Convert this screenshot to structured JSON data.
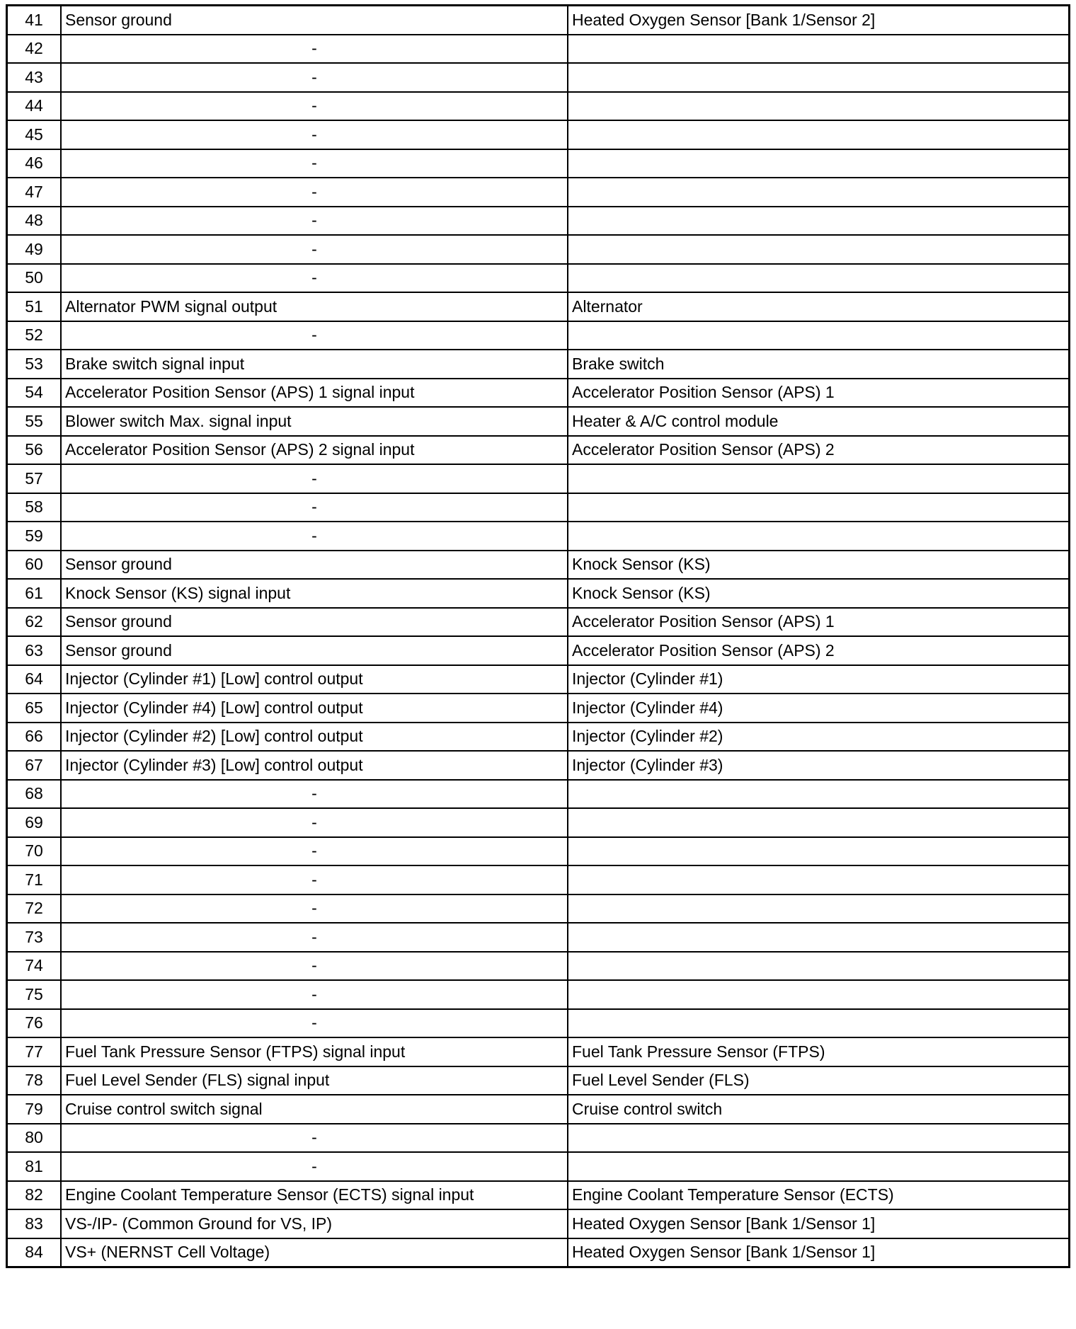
{
  "rows": [
    {
      "pin": "41",
      "description": "Sensor ground",
      "connected_to": "Heated Oxygen Sensor [Bank 1/Sensor 2]"
    },
    {
      "pin": "42",
      "description": "-",
      "connected_to": ""
    },
    {
      "pin": "43",
      "description": "-",
      "connected_to": ""
    },
    {
      "pin": "44",
      "description": "-",
      "connected_to": ""
    },
    {
      "pin": "45",
      "description": "-",
      "connected_to": ""
    },
    {
      "pin": "46",
      "description": "-",
      "connected_to": ""
    },
    {
      "pin": "47",
      "description": "-",
      "connected_to": ""
    },
    {
      "pin": "48",
      "description": "-",
      "connected_to": ""
    },
    {
      "pin": "49",
      "description": "-",
      "connected_to": ""
    },
    {
      "pin": "50",
      "description": "-",
      "connected_to": ""
    },
    {
      "pin": "51",
      "description": "Alternator PWM signal output",
      "connected_to": "Alternator"
    },
    {
      "pin": "52",
      "description": "-",
      "connected_to": ""
    },
    {
      "pin": "53",
      "description": "Brake switch signal input",
      "connected_to": "Brake switch"
    },
    {
      "pin": "54",
      "description": "Accelerator Position Sensor (APS) 1 signal input",
      "connected_to": "Accelerator Position Sensor (APS) 1"
    },
    {
      "pin": "55",
      "description": "Blower switch Max. signal input",
      "connected_to": "Heater & A/C control module"
    },
    {
      "pin": "56",
      "description": "Accelerator Position Sensor (APS) 2 signal input",
      "connected_to": "Accelerator Position Sensor (APS) 2"
    },
    {
      "pin": "57",
      "description": "-",
      "connected_to": ""
    },
    {
      "pin": "58",
      "description": "-",
      "connected_to": ""
    },
    {
      "pin": "59",
      "description": "-",
      "connected_to": ""
    },
    {
      "pin": "60",
      "description": "Sensor ground",
      "connected_to": "Knock Sensor (KS)"
    },
    {
      "pin": "61",
      "description": "Knock Sensor (KS) signal input",
      "connected_to": "Knock Sensor (KS)"
    },
    {
      "pin": "62",
      "description": "Sensor ground",
      "connected_to": "Accelerator Position Sensor (APS) 1"
    },
    {
      "pin": "63",
      "description": "Sensor ground",
      "connected_to": "Accelerator Position Sensor (APS) 2"
    },
    {
      "pin": "64",
      "description": "Injector (Cylinder #1) [Low] control output",
      "connected_to": "Injector (Cylinder #1)"
    },
    {
      "pin": "65",
      "description": "Injector (Cylinder #4) [Low] control output",
      "connected_to": "Injector (Cylinder #4)"
    },
    {
      "pin": "66",
      "description": "Injector (Cylinder #2) [Low] control output",
      "connected_to": "Injector (Cylinder #2)"
    },
    {
      "pin": "67",
      "description": "Injector (Cylinder #3) [Low] control output",
      "connected_to": "Injector (Cylinder #3)"
    },
    {
      "pin": "68",
      "description": "-",
      "connected_to": ""
    },
    {
      "pin": "69",
      "description": "-",
      "connected_to": ""
    },
    {
      "pin": "70",
      "description": "-",
      "connected_to": ""
    },
    {
      "pin": "71",
      "description": "-",
      "connected_to": ""
    },
    {
      "pin": "72",
      "description": "-",
      "connected_to": ""
    },
    {
      "pin": "73",
      "description": "-",
      "connected_to": ""
    },
    {
      "pin": "74",
      "description": "-",
      "connected_to": ""
    },
    {
      "pin": "75",
      "description": "-",
      "connected_to": ""
    },
    {
      "pin": "76",
      "description": "-",
      "connected_to": ""
    },
    {
      "pin": "77",
      "description": "Fuel Tank Pressure Sensor (FTPS) signal input",
      "connected_to": "Fuel Tank Pressure Sensor (FTPS)"
    },
    {
      "pin": "78",
      "description": "Fuel Level Sender (FLS) signal input",
      "connected_to": "Fuel Level Sender (FLS)"
    },
    {
      "pin": "79",
      "description": "Cruise control switch signal",
      "connected_to": "Cruise control switch"
    },
    {
      "pin": "80",
      "description": "-",
      "connected_to": ""
    },
    {
      "pin": "81",
      "description": "-",
      "connected_to": ""
    },
    {
      "pin": "82",
      "description": "Engine Coolant Temperature Sensor (ECTS) signal input",
      "connected_to": "Engine Coolant Temperature Sensor (ECTS)"
    },
    {
      "pin": "83",
      "description": "VS-/IP- (Common Ground for VS, IP)",
      "connected_to": "Heated Oxygen Sensor [Bank 1/Sensor 1]"
    },
    {
      "pin": "84",
      "description": "VS+ (NERNST Cell Voltage)",
      "connected_to": "Heated Oxygen Sensor [Bank 1/Sensor 1]"
    }
  ]
}
